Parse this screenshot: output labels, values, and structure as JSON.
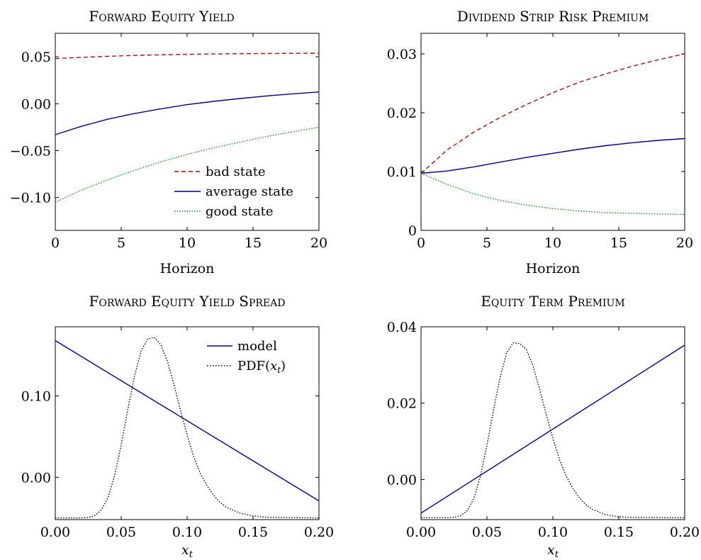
{
  "chart_data": [
    {
      "type": "line",
      "title": "Forward Equity Yield",
      "xlabel": "Horizon",
      "ylabel": "",
      "xlim": [
        0,
        20
      ],
      "ylim": [
        -0.135,
        0.075
      ],
      "xticks": [
        0,
        5,
        10,
        15,
        20
      ],
      "xtick_labels": [
        "0",
        "5",
        "10",
        "15",
        "20"
      ],
      "yticks": [
        0.05,
        0.0,
        -0.05,
        -0.1
      ],
      "ytick_labels": [
        "0.05",
        "0.00",
        "−0.05",
        "−0.10"
      ],
      "legend": "bottom-right",
      "series": [
        {
          "name": "bad state",
          "color": "#a50f0f",
          "dash": "dashed",
          "x": [
            0,
            2,
            4,
            6,
            8,
            10,
            12,
            14,
            16,
            18,
            20
          ],
          "y": [
            0.048,
            0.0494,
            0.0505,
            0.0514,
            0.0521,
            0.0526,
            0.053,
            0.0533,
            0.0535,
            0.0537,
            0.0538
          ]
        },
        {
          "name": "average state",
          "color": "#00008b",
          "dash": "solid",
          "x": [
            0,
            2,
            4,
            6,
            8,
            10,
            12,
            14,
            16,
            18,
            20
          ],
          "y": [
            -0.033,
            -0.024,
            -0.0165,
            -0.0105,
            -0.0055,
            -0.001,
            0.0025,
            0.0055,
            0.0082,
            0.0105,
            0.0125
          ]
        },
        {
          "name": "good state",
          "color": "#1a8c1a",
          "dash": "dotted",
          "x": [
            0,
            2,
            4,
            6,
            8,
            10,
            12,
            14,
            16,
            18,
            20
          ],
          "y": [
            -0.105,
            -0.092,
            -0.081,
            -0.071,
            -0.062,
            -0.054,
            -0.047,
            -0.041,
            -0.035,
            -0.03,
            -0.025
          ]
        }
      ]
    },
    {
      "type": "line",
      "title": "Dividend Strip Risk Premium",
      "xlabel": "Horizon",
      "ylabel": "",
      "xlim": [
        0,
        20
      ],
      "ylim": [
        0,
        0.0335
      ],
      "xticks": [
        0,
        5,
        10,
        15,
        20
      ],
      "xtick_labels": [
        "0",
        "5",
        "10",
        "15",
        "20"
      ],
      "yticks": [
        0,
        0.01,
        0.02,
        0.03
      ],
      "ytick_labels": [
        "0",
        "0.01",
        "0.02",
        "0.03"
      ],
      "legend": "none",
      "series": [
        {
          "name": "bad state",
          "color": "#a50f0f",
          "dash": "dashed",
          "x": [
            0,
            2,
            4,
            6,
            8,
            10,
            12,
            14,
            16,
            18,
            20
          ],
          "y": [
            0.0097,
            0.0137,
            0.0167,
            0.0192,
            0.0214,
            0.0234,
            0.0252,
            0.0266,
            0.0279,
            0.029,
            0.03
          ]
        },
        {
          "name": "average state",
          "color": "#00008b",
          "dash": "solid",
          "x": [
            0,
            2,
            4,
            6,
            8,
            10,
            12,
            14,
            16,
            18,
            20
          ],
          "y": [
            0.0097,
            0.0101,
            0.0108,
            0.0116,
            0.0124,
            0.0131,
            0.0138,
            0.0144,
            0.0149,
            0.0153,
            0.0156
          ]
        },
        {
          "name": "good state",
          "color": "#1a8c1a",
          "dash": "dotted",
          "x": [
            0,
            2,
            4,
            6,
            8,
            10,
            12,
            14,
            16,
            18,
            20
          ],
          "y": [
            0.0097,
            0.0078,
            0.0062,
            0.0051,
            0.0043,
            0.0037,
            0.0033,
            0.003,
            0.0029,
            0.0028,
            0.0027
          ]
        }
      ]
    },
    {
      "type": "line",
      "title": "Forward Equity Yield Spread",
      "xlabel": "x_t",
      "ylabel": "",
      "xlim": [
        0,
        0.2
      ],
      "ylim": [
        -0.052,
        0.185
      ],
      "xticks": [
        0,
        0.05,
        0.1,
        0.15,
        0.2
      ],
      "xtick_labels": [
        "0.00",
        "0.05",
        "0.10",
        "0.15",
        "0.20"
      ],
      "yticks": [
        0.1,
        0.0
      ],
      "ytick_labels": [
        "0.10",
        "0.00"
      ],
      "legend": "top-right",
      "series": [
        {
          "name": "model",
          "color": "#00008b",
          "dash": "solid",
          "x": [
            0,
            0.2
          ],
          "y": [
            0.168,
            -0.029
          ]
        }
      ],
      "pdf": {
        "name": "PDF(x_t)",
        "color": "#000000",
        "dash": "dotted",
        "x": [
          0,
          0.02,
          0.025,
          0.03,
          0.035,
          0.04,
          0.045,
          0.05,
          0.055,
          0.06,
          0.065,
          0.07,
          0.075,
          0.08,
          0.085,
          0.09,
          0.095,
          0.1,
          0.105,
          0.11,
          0.115,
          0.12,
          0.125,
          0.13,
          0.14,
          0.15,
          0.16,
          0.2
        ],
        "y": [
          -0.05,
          -0.05,
          -0.0495,
          -0.047,
          -0.04,
          -0.025,
          0.002,
          0.04,
          0.083,
          0.124,
          0.155,
          0.17,
          0.172,
          0.163,
          0.143,
          0.114,
          0.082,
          0.052,
          0.025,
          0.005,
          -0.01,
          -0.022,
          -0.031,
          -0.037,
          -0.044,
          -0.0475,
          -0.049,
          -0.05
        ]
      }
    },
    {
      "type": "line",
      "title": "Equity Term Premium",
      "xlabel": "x_t",
      "ylabel": "",
      "xlim": [
        0,
        0.2
      ],
      "ylim": [
        -0.0105,
        0.04
      ],
      "xticks": [
        0,
        0.05,
        0.1,
        0.15,
        0.2
      ],
      "xtick_labels": [
        "0.00",
        "0.05",
        "0.10",
        "0.15",
        "0.20"
      ],
      "yticks": [
        0.04,
        0.02,
        0.0
      ],
      "ytick_labels": [
        "0.04",
        "0.02",
        "0.00"
      ],
      "legend": "none",
      "series": [
        {
          "name": "model",
          "color": "#00008b",
          "dash": "solid",
          "x": [
            0,
            0.2
          ],
          "y": [
            -0.0088,
            0.0352
          ]
        }
      ],
      "pdf": {
        "name": "PDF(x_t)",
        "color": "#000000",
        "dash": "dotted",
        "x": [
          0,
          0.02,
          0.025,
          0.03,
          0.035,
          0.04,
          0.045,
          0.05,
          0.055,
          0.06,
          0.065,
          0.07,
          0.075,
          0.08,
          0.085,
          0.09,
          0.095,
          0.1,
          0.105,
          0.11,
          0.115,
          0.12,
          0.125,
          0.13,
          0.14,
          0.15,
          0.16,
          0.2
        ],
        "y": [
          -0.01,
          -0.01,
          -0.0099,
          -0.0095,
          -0.0082,
          -0.005,
          0.0008,
          0.009,
          0.0182,
          0.0268,
          0.0332,
          0.0358,
          0.0356,
          0.034,
          0.0297,
          0.0236,
          0.017,
          0.0108,
          0.0052,
          0.001,
          -0.0022,
          -0.0047,
          -0.0066,
          -0.0078,
          -0.0092,
          -0.0098,
          -0.0099,
          -0.01
        ]
      }
    }
  ],
  "legend_labels": {
    "bad": "bad state",
    "average": "average state",
    "good": "good state",
    "model": "model",
    "pdf_prefix": "PDF(",
    "pdf_var": "x",
    "pdf_sub": "t",
    "pdf_suffix": ")"
  },
  "xlabel_parts": {
    "var": "x",
    "sub": "t"
  }
}
